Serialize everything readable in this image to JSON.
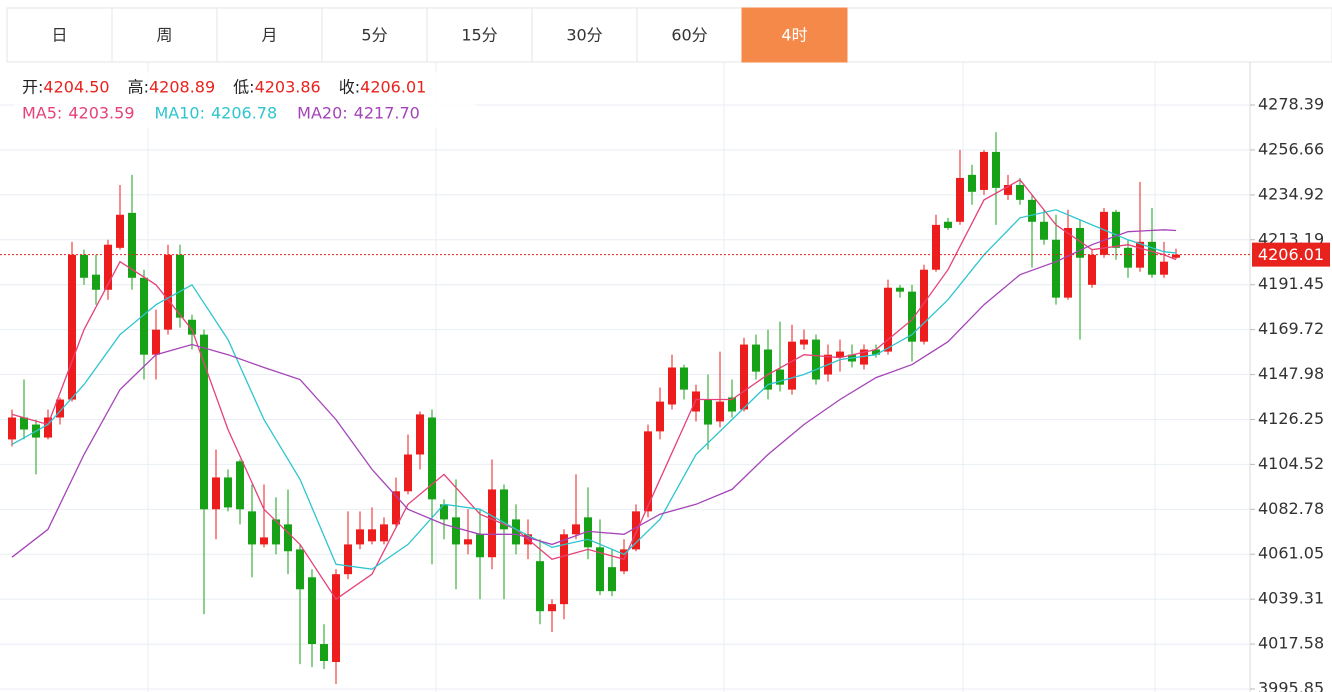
{
  "tabs": {
    "items": [
      "日",
      "周",
      "月",
      "5分",
      "15分",
      "30分",
      "60分",
      "4时"
    ],
    "active": 7
  },
  "chart_data": {
    "type": "candlestick",
    "open": [
      4116.6,
      4127.2,
      4123.8,
      4117.5,
      4127.2,
      4135.9,
      4205.9,
      4196.3,
      4189.0,
      4209.3,
      4226.2,
      4194.8,
      4157.6,
      4169.7,
      4205.9,
      4174.5,
      4167.3,
      4082.8,
      4098.2,
      4106.0,
      4081.8,
      4065.8,
      4077.9,
      4075.5,
      4063.4,
      4049.9,
      4017.6,
      4008.9,
      4051.4,
      4065.8,
      4067.3,
      4067.3,
      4075.5,
      4091.5,
      4109.3,
      4127.2,
      4085.2,
      4078.9,
      4065.8,
      4070.7,
      4059.6,
      4092.4,
      4077.9,
      4065.8,
      4057.7,
      4033.5,
      4036.9,
      4070.7,
      4078.9,
      4064.4,
      4054.8,
      4052.8,
      4063.4,
      4081.8,
      4120.5,
      4133.5,
      4151.4,
      4130.1,
      4135.9,
      4125.3,
      4136.9,
      4131.1,
      4162.5,
      4160.1,
      4150.4,
      4140.7,
      4162.5,
      4164.9,
      4148.0,
      4156.2,
      4157.6,
      4152.8,
      4160.1,
      4159.1,
      4190.0,
      4188.1,
      4163.9,
      4198.7,
      4221.9,
      4221.9,
      4244.6,
      4237.3,
      4255.7,
      4234.9,
      4239.7,
      4232.5,
      4221.9,
      4213.2,
      4185.2,
      4218.9,
      4191.4,
      4205.9,
      4226.7,
      4209.3,
      4199.7,
      4212.2,
      4196.3,
      4204.5
    ],
    "high": [
      4131.1,
      4145.6,
      4126.2,
      4131.1,
      4136.9,
      4212.2,
      4208.4,
      4205.9,
      4213.2,
      4239.7,
      4244.6,
      4198.7,
      4179.4,
      4210.8,
      4210.8,
      4177.0,
      4169.7,
      4111.7,
      4102.1,
      4106.9,
      4094.8,
      4094.8,
      4088.6,
      4092.4,
      4065.8,
      4053.8,
      4027.2,
      4053.8,
      4081.8,
      4081.8,
      4083.7,
      4078.9,
      4098.2,
      4119.0,
      4130.1,
      4131.1,
      4087.6,
      4097.3,
      4082.8,
      4082.8,
      4106.9,
      4094.8,
      4085.2,
      4077.9,
      4068.3,
      4039.3,
      4073.1,
      4099.7,
      4093.4,
      4077.9,
      4063.4,
      4068.3,
      4085.2,
      4123.8,
      4141.7,
      4157.6,
      4152.8,
      4143.1,
      4148.0,
      4159.1,
      4145.6,
      4165.8,
      4167.3,
      4169.7,
      4173.6,
      4172.1,
      4169.7,
      4167.3,
      4162.5,
      4164.9,
      4162.5,
      4162.5,
      4162.5,
      4193.9,
      4191.4,
      4191.4,
      4201.1,
      4225.3,
      4223.8,
      4256.6,
      4249.4,
      4256.6,
      4265.3,
      4244.6,
      4243.1,
      4234.9,
      4227.7,
      4225.3,
      4227.7,
      4222.8,
      4208.4,
      4228.6,
      4227.7,
      4213.2,
      4241.2,
      4228.6,
      4212.2,
      4208.89
    ],
    "low": [
      4113.2,
      4116.6,
      4099.7,
      4116.6,
      4123.8,
      4134.9,
      4191.4,
      4181.8,
      4184.2,
      4208.4,
      4189.0,
      4145.6,
      4145.6,
      4167.3,
      4170.7,
      4160.1,
      4032.1,
      4068.3,
      4081.8,
      4075.5,
      4049.9,
      4064.4,
      4061.0,
      4051.4,
      4007.9,
      4006.5,
      4005.5,
      3998.3,
      4049.0,
      4063.4,
      4065.8,
      4065.8,
      4074.1,
      4090.0,
      4102.1,
      4056.2,
      4068.3,
      4044.1,
      4061.0,
      4039.3,
      4053.8,
      4039.3,
      4061.0,
      4058.6,
      4027.2,
      4023.4,
      4029.6,
      4068.3,
      4058.6,
      4041.3,
      4040.8,
      4051.4,
      4062.5,
      4078.9,
      4116.6,
      4131.1,
      4135.9,
      4125.3,
      4111.7,
      4122.4,
      4127.2,
      4130.1,
      4145.6,
      4135.9,
      4139.8,
      4138.3,
      4160.1,
      4143.1,
      4144.6,
      4149.4,
      4151.4,
      4150.4,
      4156.2,
      4157.6,
      4185.2,
      4154.3,
      4162.5,
      4197.7,
      4218.0,
      4220.4,
      4230.1,
      4234.9,
      4220.4,
      4232.5,
      4230.1,
      4199.7,
      4210.8,
      4181.8,
      4184.2,
      4164.9,
      4190.0,
      4204.5,
      4203.5,
      4194.8,
      4197.7,
      4194.8,
      4194.8,
      4203.86
    ],
    "close": [
      4127.2,
      4121.4,
      4117.5,
      4127.2,
      4135.9,
      4205.9,
      4194.8,
      4189.0,
      4210.8,
      4225.3,
      4194.8,
      4157.6,
      4169.7,
      4205.9,
      4175.5,
      4167.3,
      4082.8,
      4098.2,
      4083.7,
      4082.8,
      4065.8,
      4069.2,
      4065.8,
      4062.5,
      4044.1,
      4017.6,
      4009.4,
      4051.4,
      4065.8,
      4073.1,
      4073.1,
      4075.5,
      4091.5,
      4109.3,
      4128.7,
      4087.6,
      4077.9,
      4065.8,
      4068.3,
      4059.6,
      4092.4,
      4073.1,
      4065.8,
      4070.7,
      4033.5,
      4036.9,
      4070.7,
      4075.5,
      4064.4,
      4043.2,
      4043.2,
      4063.4,
      4081.8,
      4120.5,
      4134.9,
      4151.4,
      4140.7,
      4139.8,
      4123.8,
      4134.9,
      4130.1,
      4162.5,
      4149.4,
      4140.7,
      4143.1,
      4163.9,
      4164.9,
      4145.6,
      4157.6,
      4159.1,
      4154.3,
      4160.1,
      4157.6,
      4190.0,
      4188.1,
      4163.9,
      4198.7,
      4220.4,
      4218.9,
      4243.1,
      4236.4,
      4255.7,
      4238.3,
      4239.7,
      4232.5,
      4221.9,
      4213.2,
      4185.2,
      4218.9,
      4204.5,
      4205.9,
      4226.7,
      4209.3,
      4199.7,
      4212.2,
      4196.3,
      4202.6,
      4206.01
    ],
    "up_color": "#ee1d1d",
    "down_color": "#17a117",
    "ohlc_legend": [
      {
        "name": "开:",
        "text": "4204.50"
      },
      {
        "name": "高:",
        "text": "4208.89"
      },
      {
        "name": "低:",
        "text": "4203.86"
      },
      {
        "name": "收:",
        "text": "4206.01"
      }
    ],
    "series": [
      {
        "name": "MA5:",
        "text": "4203.59",
        "color": "#e5427a",
        "x": [
          0,
          3,
          6,
          9,
          12,
          15,
          18,
          21,
          24,
          27,
          30,
          33,
          36,
          39,
          42,
          45,
          48,
          51,
          54,
          57,
          60,
          63,
          66,
          69,
          72,
          75,
          78,
          81,
          84,
          87,
          90,
          93,
          96,
          97
        ],
        "values": [
          4128.7,
          4123.8,
          4169.7,
          4202.6,
          4191.4,
          4169.7,
          4121.4,
          4082.8,
          4065.8,
          4039.3,
          4051.4,
          4085.2,
          4099.7,
          4080.4,
          4073.1,
          4058.6,
          4063.4,
          4058.6,
          4097.3,
          4135.9,
          4135.9,
          4148.0,
          4157.6,
          4156.2,
          4160.1,
          4174.5,
          4198.7,
          4232.5,
          4242.2,
          4220.4,
          4208.4,
          4210.8,
          4205.9,
          4203.59
        ]
      },
      {
        "name": "MA10:",
        "text": "4206.78",
        "color": "#2fc5cf",
        "x": [
          0,
          3,
          6,
          9,
          12,
          15,
          18,
          21,
          24,
          27,
          30,
          33,
          36,
          39,
          42,
          45,
          48,
          51,
          54,
          57,
          60,
          63,
          66,
          69,
          72,
          75,
          78,
          81,
          84,
          87,
          90,
          93,
          96,
          97
        ],
        "values": [
          4114.2,
          4123.8,
          4143.1,
          4167.3,
          4181.8,
          4191.4,
          4164.9,
          4126.2,
          4097.3,
          4056.2,
          4053.8,
          4065.8,
          4085.2,
          4082.8,
          4073.1,
          4064.4,
          4068.3,
          4061.0,
          4077.9,
          4109.3,
          4126.2,
          4143.1,
          4148.0,
          4155.2,
          4157.6,
          4167.3,
          4184.2,
          4205.9,
          4223.8,
          4227.7,
          4220.4,
          4213.2,
          4207.4,
          4206.78
        ]
      },
      {
        "name": "MA20:",
        "text": "4217.70",
        "color": "#a544b8",
        "x": [
          0,
          3,
          6,
          9,
          12,
          15,
          18,
          21,
          24,
          27,
          30,
          33,
          36,
          39,
          42,
          45,
          48,
          51,
          54,
          57,
          60,
          63,
          66,
          69,
          72,
          75,
          78,
          81,
          84,
          87,
          90,
          93,
          96,
          97
        ],
        "values": [
          4059.6,
          4073.1,
          4109.3,
          4140.7,
          4157.6,
          4162.5,
          4157.6,
          4151.4,
          4145.6,
          4126.2,
          4102.1,
          4082.8,
          4075.5,
          4070.7,
          4070.7,
          4065.8,
          4072.1,
          4070.7,
          4080.4,
          4085.2,
          4092.4,
          4109.3,
          4123.8,
          4135.9,
          4146.5,
          4152.8,
          4163.9,
          4181.8,
          4196.3,
          4202.6,
          4210.8,
          4217.1,
          4218.0,
          4217.7
        ]
      }
    ],
    "ylim": [
      3994.4,
      4299.2
    ],
    "yticks": [
      3995.85,
      4017.58,
      4039.31,
      4061.05,
      4082.78,
      4104.52,
      4126.25,
      4147.98,
      4169.72,
      4191.45,
      4213.19,
      4234.92,
      4256.66,
      4278.39
    ],
    "grid": true,
    "last_price": {
      "value": 4206.01,
      "label": "4206.01"
    }
  }
}
